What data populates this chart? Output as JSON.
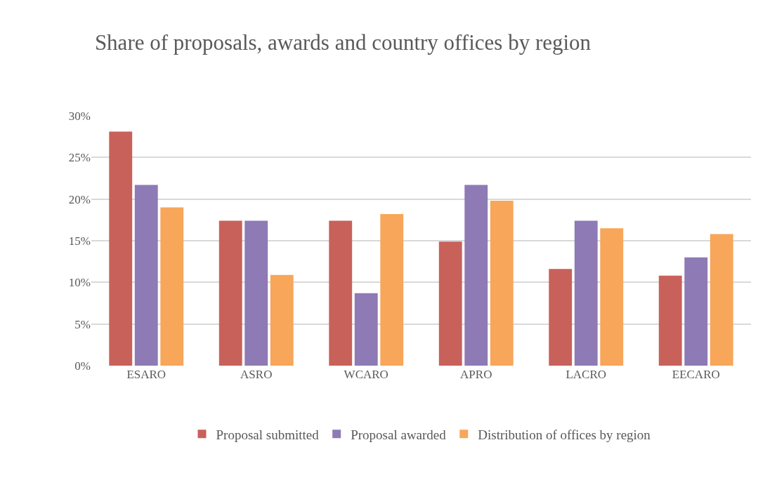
{
  "chart_data": {
    "type": "bar",
    "title": "Share of proposals, awards and country offices by region",
    "categories": [
      "ESARO",
      "ASRO",
      "WCARO",
      "APRO",
      "LACRO",
      "EECARO"
    ],
    "series": [
      {
        "name": "Proposal submitted",
        "color": "#c8615a",
        "values": [
          28.1,
          17.4,
          17.4,
          14.9,
          11.6,
          10.8
        ]
      },
      {
        "name": "Proposal awarded",
        "color": "#8e7ab5",
        "values": [
          21.7,
          17.4,
          8.7,
          21.7,
          17.4,
          13.0
        ]
      },
      {
        "name": "Distribution of offices by region",
        "color": "#f7a65a",
        "values": [
          19.0,
          10.9,
          18.2,
          19.8,
          16.5,
          15.8
        ]
      }
    ],
    "ylim": [
      0,
      30
    ],
    "yticks": [
      {
        "value": 0,
        "label": "0%"
      },
      {
        "value": 5,
        "label": "5%"
      },
      {
        "value": 10,
        "label": "10%"
      },
      {
        "value": 15,
        "label": "15%"
      },
      {
        "value": 20,
        "label": "20%"
      },
      {
        "value": 25,
        "label": "25%"
      },
      {
        "value": 30,
        "label": "30%"
      }
    ],
    "grid": "y",
    "legend": "bottom"
  }
}
